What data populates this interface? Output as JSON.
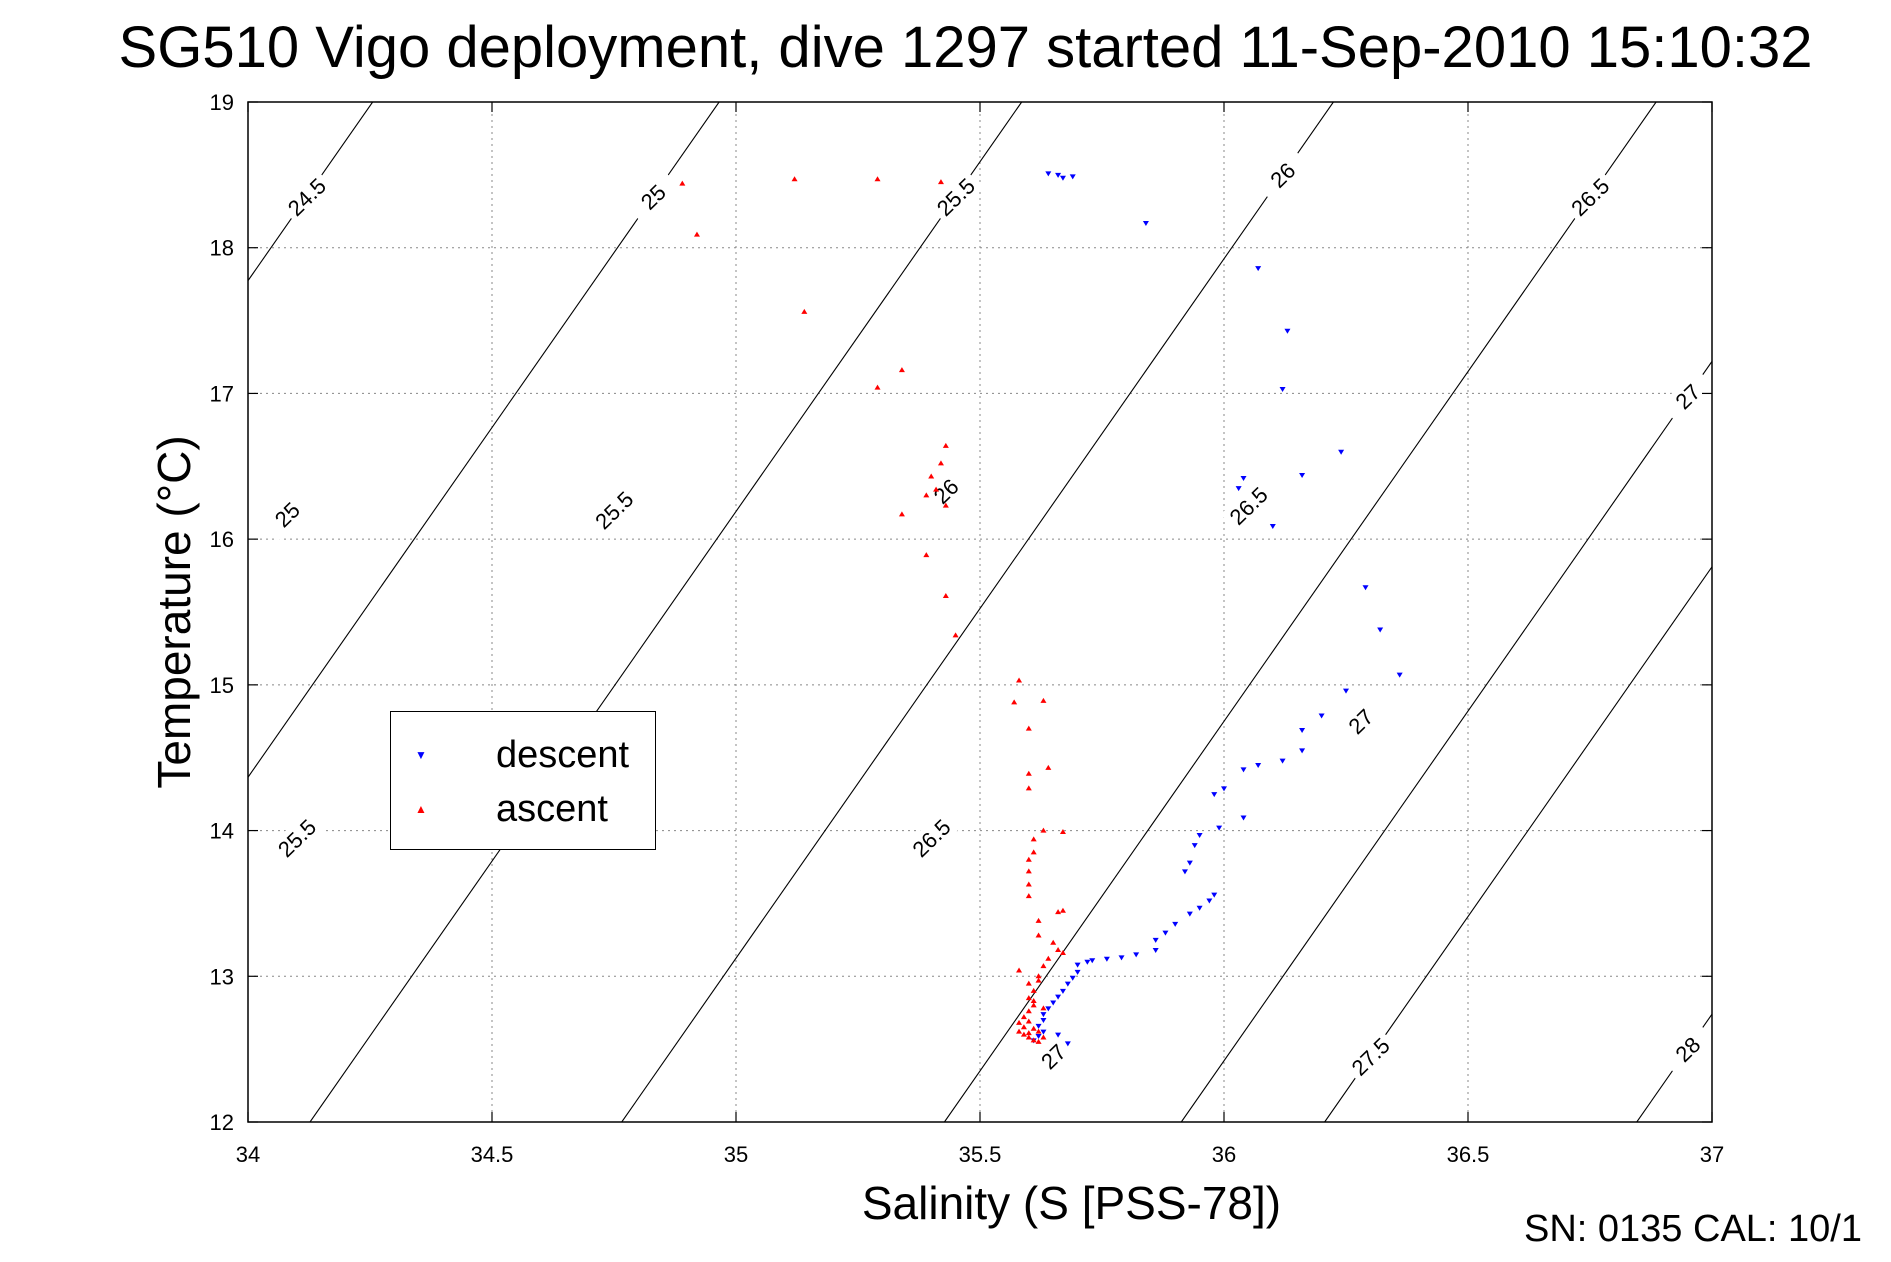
{
  "chart_data": {
    "type": "scatter",
    "title": "SG510 Vigo deployment, dive 1297 started 11-Sep-2010 15:10:32",
    "xlabel": "Salinity (S [PSS-78])",
    "ylabel": "Temperature (°C)",
    "xlim": [
      34,
      37
    ],
    "ylim": [
      12,
      19
    ],
    "x_ticks": [
      "34",
      "34.5",
      "35",
      "35.5",
      "36",
      "36.5",
      "37"
    ],
    "y_ticks": [
      "12",
      "13",
      "14",
      "15",
      "16",
      "17",
      "18",
      "19"
    ],
    "grid": true,
    "legend_position": "center-left",
    "density_contours": [
      {
        "label": "24.5",
        "label_at": [
          34.12,
          18.35
        ]
      },
      {
        "label": "25",
        "label_at": [
          34.83,
          18.35
        ],
        "label2": "25",
        "label2_at": [
          34.08,
          16.17
        ]
      },
      {
        "label": "25.5",
        "label_at": [
          35.45,
          18.35
        ],
        "label2": "25.5",
        "label2_at": [
          34.75,
          16.2
        ],
        "label3": "25.5",
        "label3_at": [
          34.1,
          13.95
        ]
      },
      {
        "label": "26",
        "label_at": [
          36.12,
          18.5
        ],
        "label2": "26",
        "label2_at": [
          35.43,
          16.33
        ]
      },
      {
        "label": "26.5",
        "label_at": [
          36.75,
          18.35
        ],
        "label2": "26.5",
        "label2_at": [
          36.05,
          16.23
        ],
        "label3": "26.5",
        "label3_at": [
          35.4,
          13.95
        ]
      },
      {
        "label": "27",
        "label_at": [
          36.95,
          16.98
        ],
        "label2": "27",
        "label2_at": [
          36.28,
          14.75
        ],
        "label3": "27",
        "label3_at": [
          35.65,
          12.45
        ]
      },
      {
        "label": "27.5",
        "label_at": [
          36.3,
          12.45
        ]
      },
      {
        "label": "28",
        "label_at": [
          36.95,
          12.5
        ]
      }
    ],
    "series": [
      {
        "name": "descent",
        "color": "#0000ff",
        "marker": "triangle-down",
        "points": [
          [
            35.64,
            18.51
          ],
          [
            35.66,
            18.5
          ],
          [
            35.67,
            18.48
          ],
          [
            35.69,
            18.49
          ],
          [
            35.84,
            18.17
          ],
          [
            36.07,
            17.86
          ],
          [
            36.13,
            17.43
          ],
          [
            36.12,
            17.03
          ],
          [
            36.24,
            16.6
          ],
          [
            36.04,
            16.42
          ],
          [
            36.16,
            16.44
          ],
          [
            36.03,
            16.35
          ],
          [
            36.1,
            16.09
          ],
          [
            36.29,
            15.67
          ],
          [
            36.32,
            15.38
          ],
          [
            36.36,
            15.07
          ],
          [
            36.25,
            14.96
          ],
          [
            36.2,
            14.79
          ],
          [
            36.16,
            14.69
          ],
          [
            36.16,
            14.55
          ],
          [
            36.12,
            14.48
          ],
          [
            36.07,
            14.45
          ],
          [
            36.04,
            14.42
          ],
          [
            36.0,
            14.29
          ],
          [
            35.98,
            14.25
          ],
          [
            35.99,
            14.02
          ],
          [
            36.04,
            14.09
          ],
          [
            35.95,
            13.97
          ],
          [
            35.94,
            13.9
          ],
          [
            35.93,
            13.78
          ],
          [
            35.92,
            13.72
          ],
          [
            35.98,
            13.56
          ],
          [
            35.97,
            13.52
          ],
          [
            35.95,
            13.47
          ],
          [
            35.93,
            13.43
          ],
          [
            35.9,
            13.36
          ],
          [
            35.88,
            13.3
          ],
          [
            35.86,
            13.25
          ],
          [
            35.86,
            13.18
          ],
          [
            35.82,
            13.15
          ],
          [
            35.79,
            13.13
          ],
          [
            35.76,
            13.12
          ],
          [
            35.73,
            13.11
          ],
          [
            35.72,
            13.1
          ],
          [
            35.7,
            13.08
          ],
          [
            35.7,
            13.03
          ],
          [
            35.69,
            12.99
          ],
          [
            35.68,
            12.95
          ],
          [
            35.67,
            12.9
          ],
          [
            35.66,
            12.86
          ],
          [
            35.65,
            12.82
          ],
          [
            35.64,
            12.78
          ],
          [
            35.63,
            12.74
          ],
          [
            35.63,
            12.7
          ],
          [
            35.62,
            12.66
          ],
          [
            35.63,
            12.62
          ],
          [
            35.62,
            12.59
          ],
          [
            35.61,
            12.56
          ],
          [
            35.68,
            12.54
          ],
          [
            35.66,
            12.6
          ]
        ]
      },
      {
        "name": "ascent",
        "color": "#ff0000",
        "marker": "triangle-up",
        "points": [
          [
            34.89,
            18.44
          ],
          [
            35.12,
            18.47
          ],
          [
            35.29,
            18.47
          ],
          [
            35.42,
            18.45
          ],
          [
            34.92,
            18.09
          ],
          [
            35.14,
            17.56
          ],
          [
            35.34,
            17.16
          ],
          [
            35.29,
            17.04
          ],
          [
            35.43,
            16.64
          ],
          [
            35.42,
            16.52
          ],
          [
            35.4,
            16.43
          ],
          [
            35.41,
            16.34
          ],
          [
            35.39,
            16.3
          ],
          [
            35.43,
            16.23
          ],
          [
            35.34,
            16.17
          ],
          [
            35.39,
            15.89
          ],
          [
            35.43,
            15.61
          ],
          [
            35.45,
            15.34
          ],
          [
            35.58,
            15.03
          ],
          [
            35.63,
            14.89
          ],
          [
            35.57,
            14.88
          ],
          [
            35.6,
            14.7
          ],
          [
            35.64,
            14.43
          ],
          [
            35.6,
            14.39
          ],
          [
            35.6,
            14.29
          ],
          [
            35.63,
            14.0
          ],
          [
            35.67,
            13.99
          ],
          [
            35.61,
            13.94
          ],
          [
            35.61,
            13.85
          ],
          [
            35.6,
            13.8
          ],
          [
            35.6,
            13.72
          ],
          [
            35.6,
            13.63
          ],
          [
            35.6,
            13.55
          ],
          [
            35.67,
            13.45
          ],
          [
            35.66,
            13.44
          ],
          [
            35.62,
            13.38
          ],
          [
            35.62,
            13.28
          ],
          [
            35.65,
            13.23
          ],
          [
            35.66,
            13.18
          ],
          [
            35.67,
            13.16
          ],
          [
            35.64,
            13.12
          ],
          [
            35.63,
            13.07
          ],
          [
            35.58,
            13.04
          ],
          [
            35.62,
            13.0
          ],
          [
            35.6,
            12.95
          ],
          [
            35.61,
            12.9
          ],
          [
            35.6,
            12.85
          ],
          [
            35.61,
            12.8
          ],
          [
            35.6,
            12.76
          ],
          [
            35.59,
            12.72
          ],
          [
            35.58,
            12.68
          ],
          [
            35.59,
            12.65
          ],
          [
            35.58,
            12.62
          ],
          [
            35.59,
            12.6
          ],
          [
            35.6,
            12.58
          ],
          [
            35.61,
            12.56
          ],
          [
            35.62,
            12.55
          ],
          [
            35.63,
            12.58
          ],
          [
            35.6,
            12.61
          ],
          [
            35.61,
            12.64
          ],
          [
            35.62,
            12.62
          ],
          [
            35.6,
            12.69
          ],
          [
            35.63,
            12.78
          ],
          [
            35.61,
            12.83
          ],
          [
            35.62,
            12.97
          ]
        ]
      }
    ]
  },
  "footer": {
    "calibration": "SN: 0135  CAL: 10/1"
  }
}
